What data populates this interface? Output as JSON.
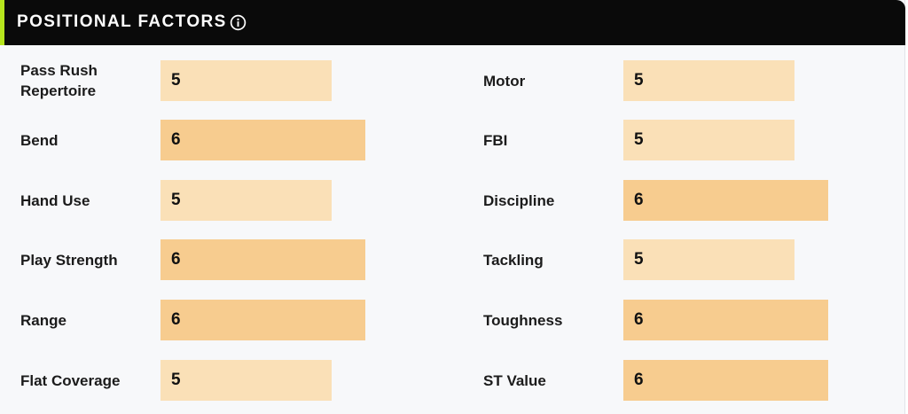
{
  "header": {
    "title": "POSITIONAL FACTORS",
    "info_icon": "info-icon"
  },
  "colors": {
    "header_bg": "#0a0a0a",
    "accent": "#b6e51d",
    "bar_level_5": "#fae0b7",
    "bar_level_6": "#f7cc8f"
  },
  "factors_left": [
    {
      "label": "Pass Rush Repertoire",
      "value": 5
    },
    {
      "label": "Bend",
      "value": 6
    },
    {
      "label": "Hand Use",
      "value": 5
    },
    {
      "label": "Play Strength",
      "value": 6
    },
    {
      "label": "Range",
      "value": 6
    },
    {
      "label": "Flat Coverage",
      "value": 5
    }
  ],
  "factors_right": [
    {
      "label": "Motor",
      "value": 5
    },
    {
      "label": "FBI",
      "value": 5
    },
    {
      "label": "Discipline",
      "value": 6
    },
    {
      "label": "Tackling",
      "value": 5
    },
    {
      "label": "Toughness",
      "value": 6
    },
    {
      "label": "ST Value",
      "value": 6
    }
  ]
}
